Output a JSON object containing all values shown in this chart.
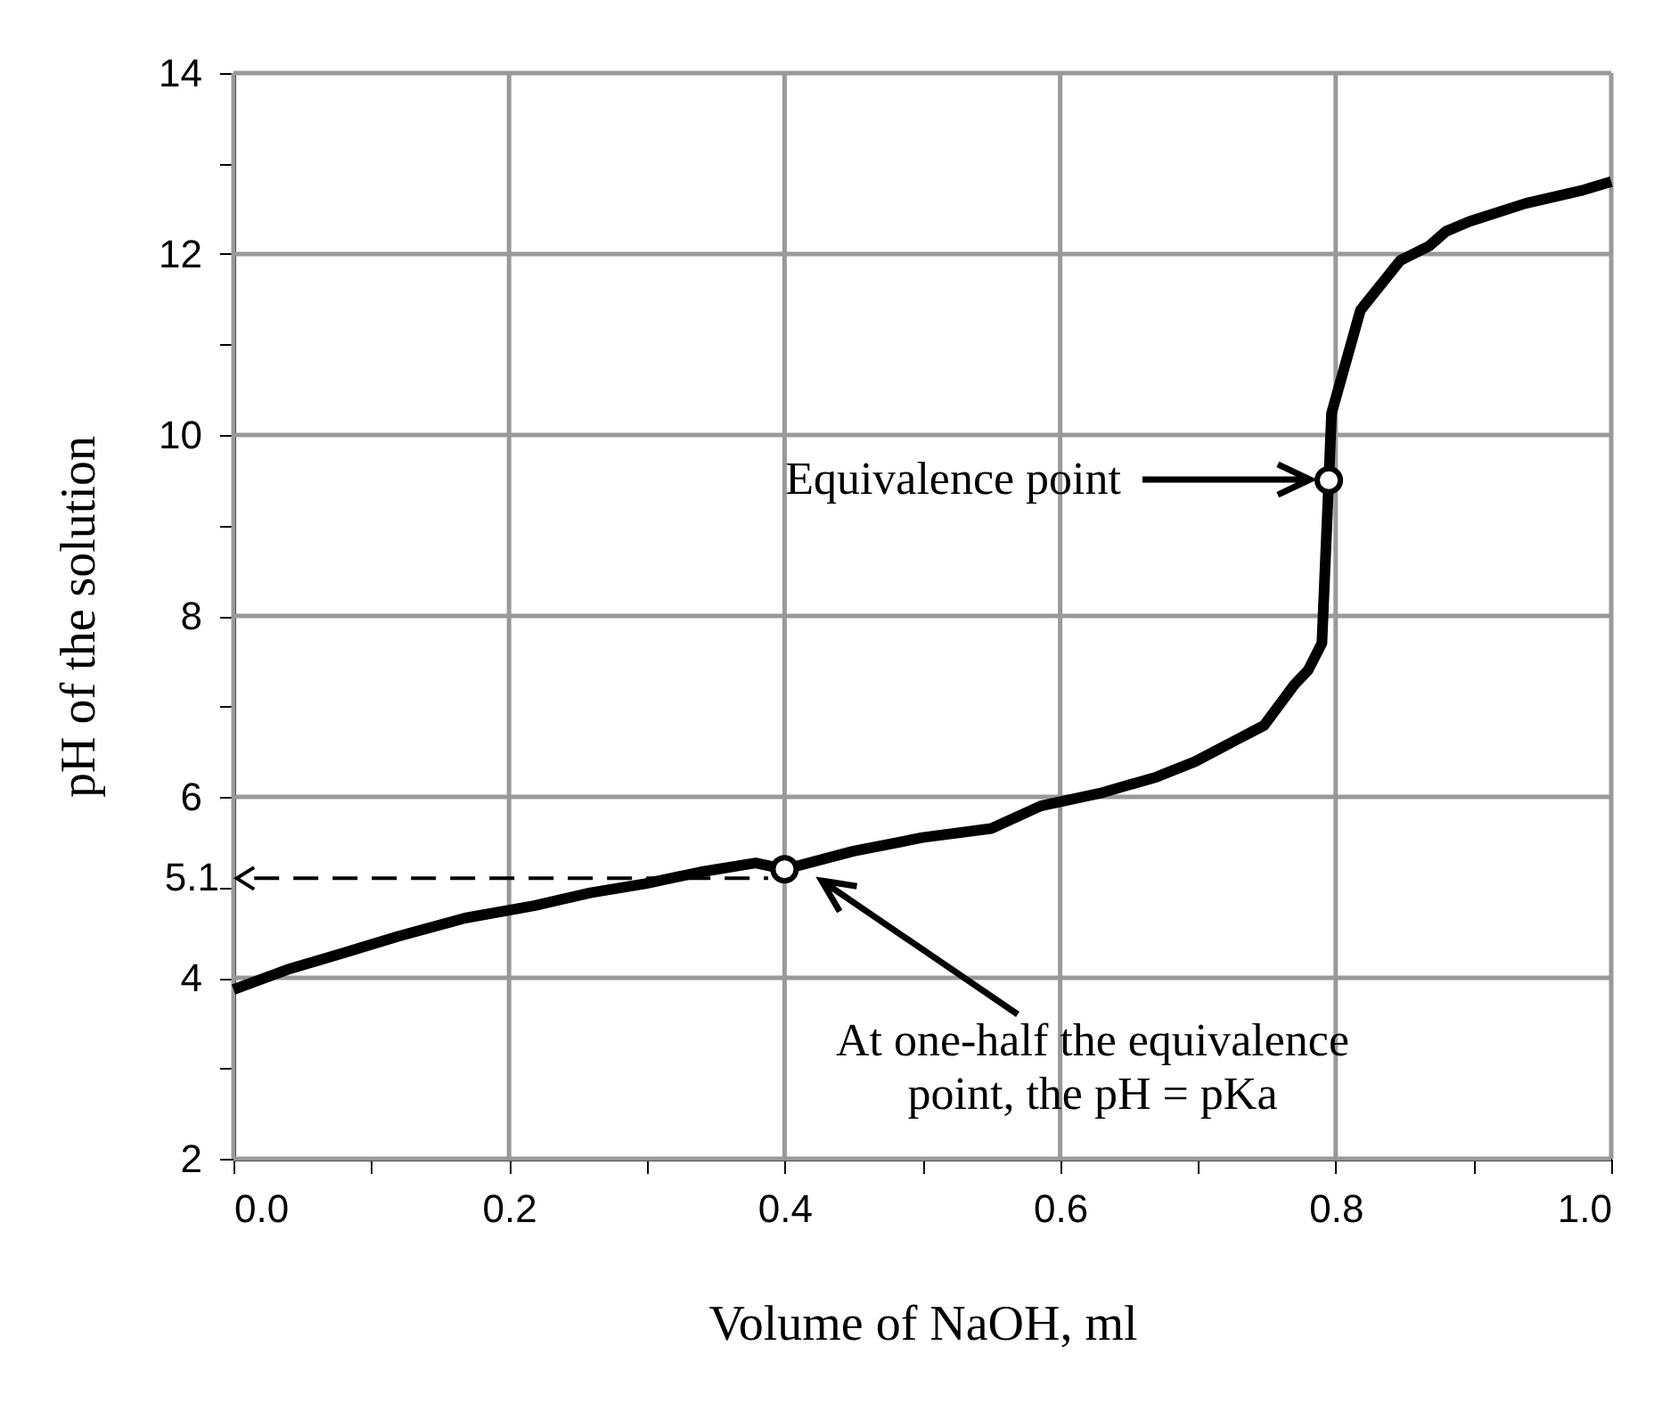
{
  "chart_data": {
    "type": "line",
    "xlabel": "Volume of NaOH, ml",
    "ylabel": "pH of the solution",
    "x": [
      0,
      0.039,
      0.079,
      0.12,
      0.168,
      0.219,
      0.259,
      0.299,
      0.339,
      0.379,
      0.4,
      0.45,
      0.5,
      0.55,
      0.586,
      0.629,
      0.67,
      0.698,
      0.728,
      0.748,
      0.77,
      0.78,
      0.79,
      0.795,
      0.797,
      0.818,
      0.847,
      0.868,
      0.88,
      0.897,
      0.938,
      0.978,
      1.0
    ],
    "series": [
      {
        "color": "#000000",
        "values": [
          3.87,
          4.09,
          4.27,
          4.46,
          4.66,
          4.8,
          4.94,
          5.04,
          5.17,
          5.27,
          5.2,
          5.4,
          5.55,
          5.65,
          5.9,
          6.04,
          6.22,
          6.39,
          6.63,
          6.79,
          7.24,
          7.4,
          7.7,
          9.5,
          10.24,
          11.38,
          11.93,
          12.09,
          12.25,
          12.36,
          12.56,
          12.7,
          12.8
        ]
      },
      {
        "type": "scatter",
        "marker": "circle",
        "color": "#000000",
        "x": [
          0.4,
          0.795
        ],
        "values": [
          5.2,
          9.5
        ]
      }
    ],
    "xlim": [
      0,
      1
    ],
    "ylim": [
      2,
      14
    ],
    "xticks": [
      {
        "value": 0,
        "label": "0.0"
      },
      {
        "value": 0.1,
        "label": null
      },
      {
        "value": 0.2,
        "label": "0.2"
      },
      {
        "value": 0.3,
        "label": null
      },
      {
        "value": 0.4,
        "label": "0.4"
      },
      {
        "value": 0.5,
        "label": null
      },
      {
        "value": 0.6,
        "label": "0.6"
      },
      {
        "value": 0.7,
        "label": null
      },
      {
        "value": 0.8,
        "label": "0.8"
      },
      {
        "value": 0.9,
        "label": null
      },
      {
        "value": 1,
        "label": "1.0"
      }
    ],
    "yticks": [
      2,
      {
        "value": 3,
        "label": null
      },
      4,
      {
        "value": 5,
        "label": null
      },
      6,
      {
        "value": 7,
        "label": null
      },
      8,
      {
        "value": 9,
        "label": null
      },
      10,
      {
        "value": 11,
        "label": null
      },
      12,
      {
        "value": 13,
        "label": null
      },
      14
    ],
    "grid": true,
    "marker": "none",
    "line_style": "solid",
    "legend": false,
    "ref_lines": [
      {
        "axis": "y",
        "value": 5.1,
        "label": "5.1",
        "line_style": "dashed",
        "color": "#000000"
      }
    ],
    "annotations": [
      "Equivalence point",
      "At one-half the equivalence\npoint, the pH = pKa"
    ]
  }
}
